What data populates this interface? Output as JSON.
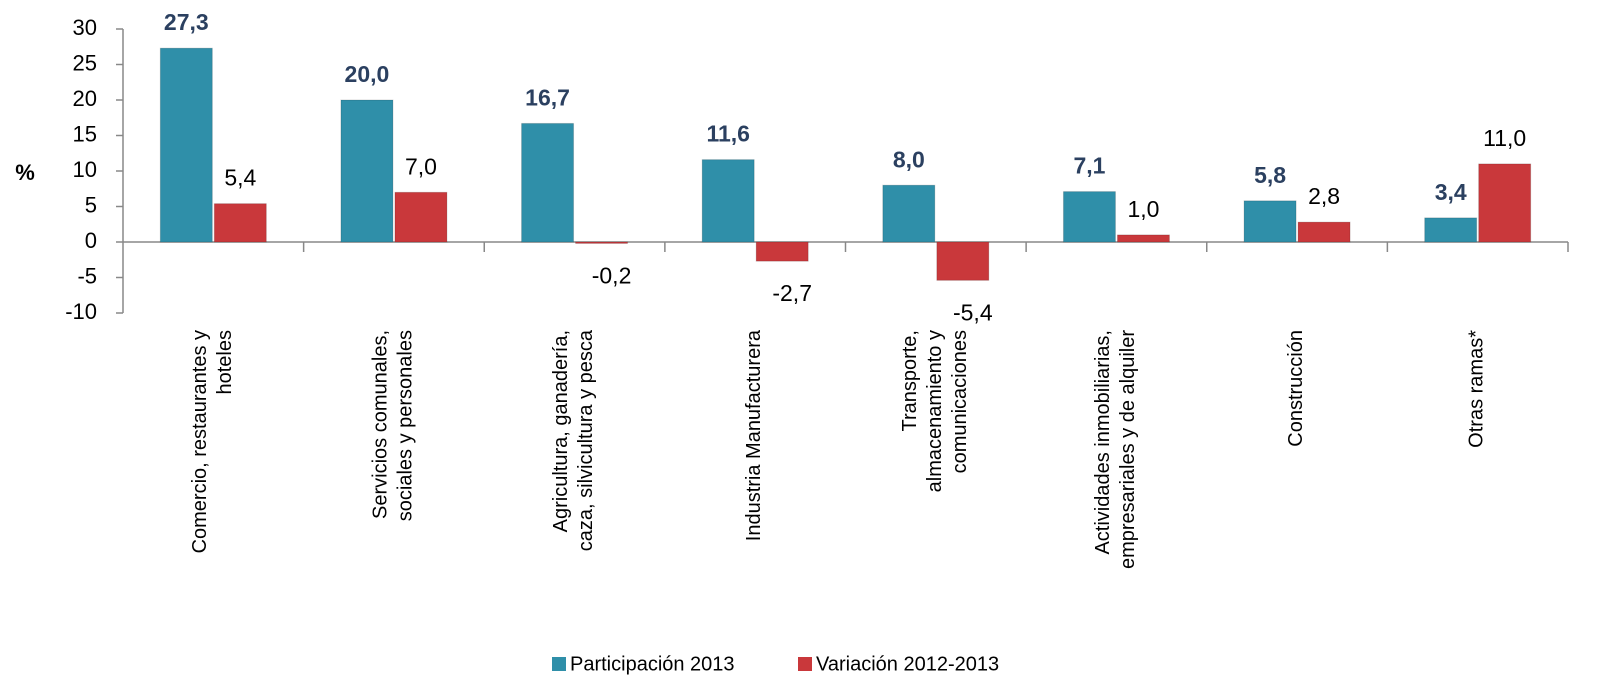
{
  "chart_data": {
    "type": "bar",
    "y_label": "%",
    "categories": [
      [
        "Comercio, restaurantes y",
        "hoteles"
      ],
      [
        "Servicios comunales,",
        "sociales y personales"
      ],
      [
        "Agricultura, ganadería,",
        "caza, silvicultura y pesca"
      ],
      [
        "Industria Manufacturera"
      ],
      [
        "Transporte,",
        "almacenamiento y",
        "comunicaciones"
      ],
      [
        "Actividades inmobiliarias,",
        "empresariales y de alquiler"
      ],
      [
        "Construcción"
      ],
      [
        "Otras ramas*"
      ]
    ],
    "series": [
      {
        "name": "Participación 2013",
        "color": "#2f8fa9",
        "values": [
          27.3,
          20.0,
          16.7,
          11.6,
          8.0,
          7.1,
          5.8,
          3.4
        ],
        "value_labels": [
          "27,3",
          "20,0",
          "16,7",
          "11,6",
          "8,0",
          "7,1",
          "5,8",
          "3,4"
        ]
      },
      {
        "name": "Variación 2012-2013",
        "color": "#c9383b",
        "values": [
          5.4,
          7.0,
          -0.2,
          -2.7,
          -5.4,
          1.0,
          2.8,
          11.0
        ],
        "value_labels": [
          "5,4",
          "7,0",
          "-0,2",
          "-2,7",
          "-5,4",
          "1,0",
          "2,8",
          "11,0"
        ]
      }
    ],
    "ylim": [
      -10,
      30
    ],
    "yticks": [
      -10,
      -5,
      0,
      5,
      10,
      15,
      20,
      25,
      30
    ],
    "legend": "bottom"
  }
}
